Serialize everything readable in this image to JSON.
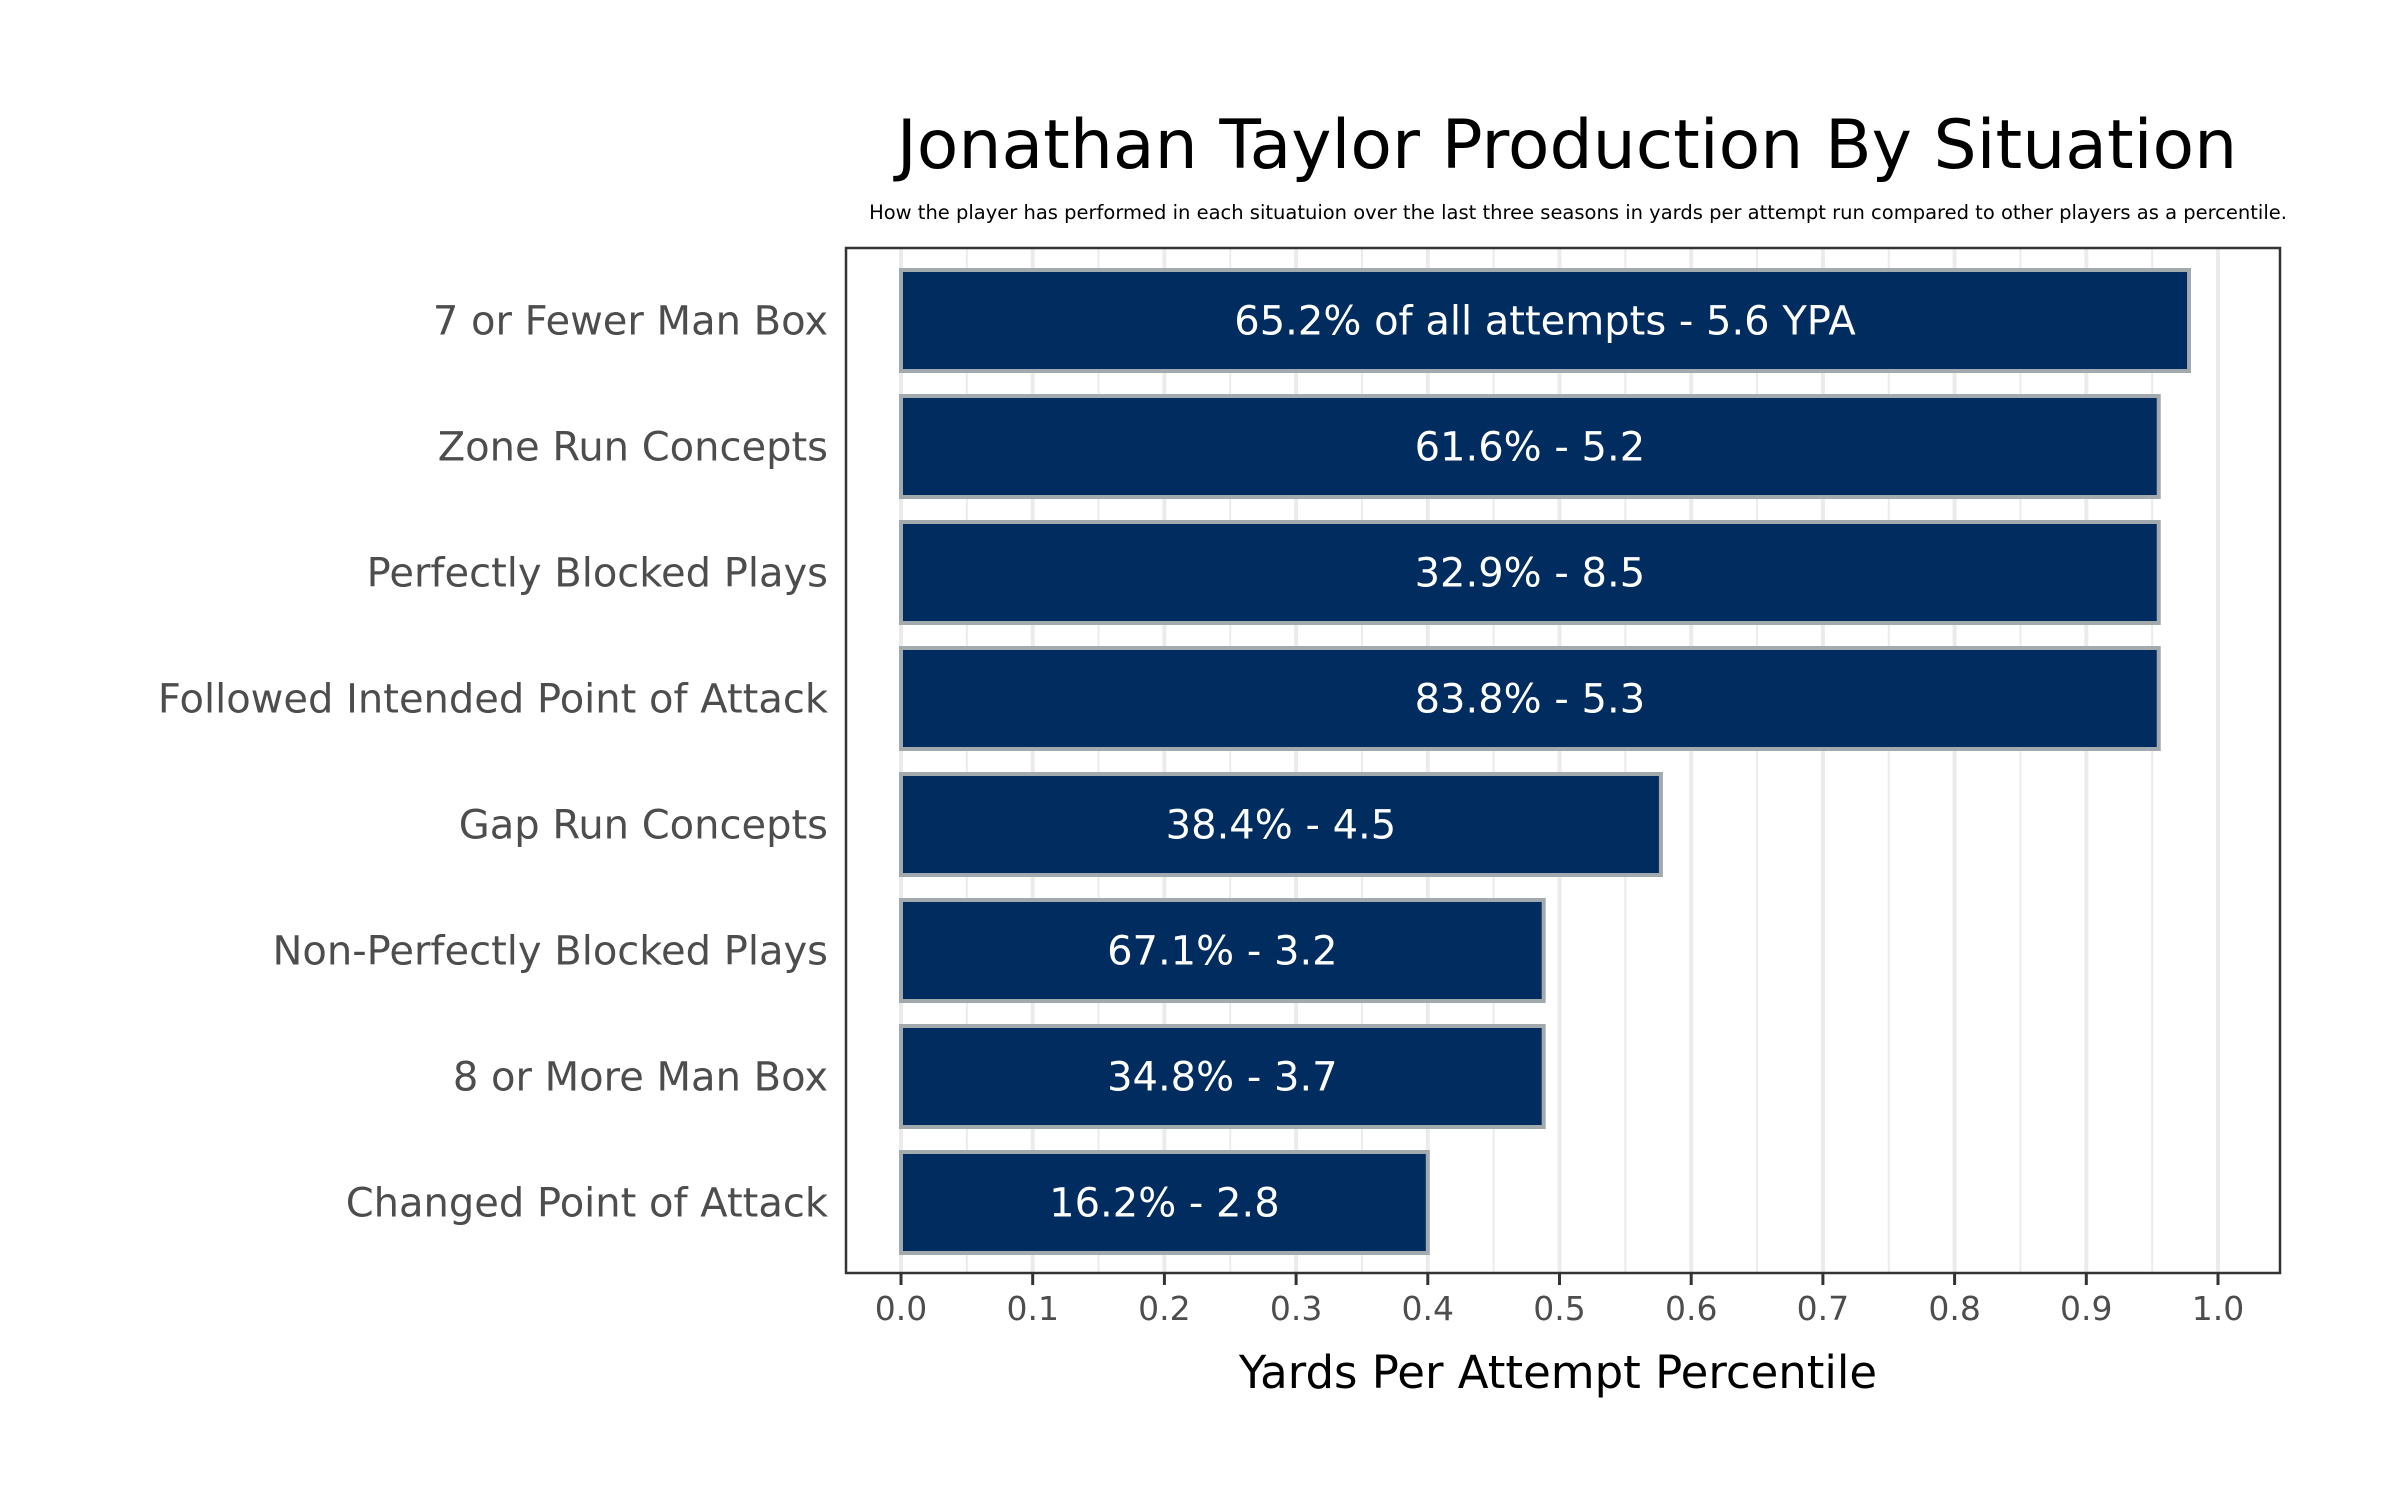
{
  "chart_data": {
    "type": "bar",
    "orientation": "horizontal",
    "title": "Jonathan Taylor Production By Situation",
    "subtitle": "How the player has performed in each situatuion over the last three seasons in yards per attempt run compared to other players as a percentile.",
    "xlabel": "Yards Per Attempt Percentile",
    "ylabel": "",
    "xlim": [
      0.0,
      1.0
    ],
    "xticks": [
      "0.0",
      "0.1",
      "0.2",
      "0.3",
      "0.4",
      "0.5",
      "0.6",
      "0.7",
      "0.8",
      "0.9",
      "1.0"
    ],
    "grid": true,
    "legend": "none",
    "categories": [
      "7 or Fewer Man Box",
      "Zone Run Concepts",
      "Perfectly Blocked Plays",
      "Followed Intended Point of Attack",
      "Gap Run Concepts",
      "Non-Perfectly Blocked Plays",
      "8 or More Man Box",
      "Changed Point of Attack"
    ],
    "values": [
      0.978,
      0.955,
      0.955,
      0.955,
      0.577,
      0.488,
      0.488,
      0.4
    ],
    "bar_labels": [
      "65.2% of all attempts - 5.6 YPA",
      "61.6% - 5.2",
      "32.9% - 8.5",
      "83.8% - 5.3",
      "38.4% - 4.5",
      "67.1% - 3.2",
      "34.8% - 3.7",
      "16.2% - 2.8"
    ],
    "colors": {
      "bar_fill": "#002C5F",
      "bar_outline": "#A2AAAD",
      "bar_label": "#FFFFFF",
      "grid": "#EBEBEB",
      "panel_border": "#333333",
      "axis_text": "#4D4D4D"
    }
  }
}
